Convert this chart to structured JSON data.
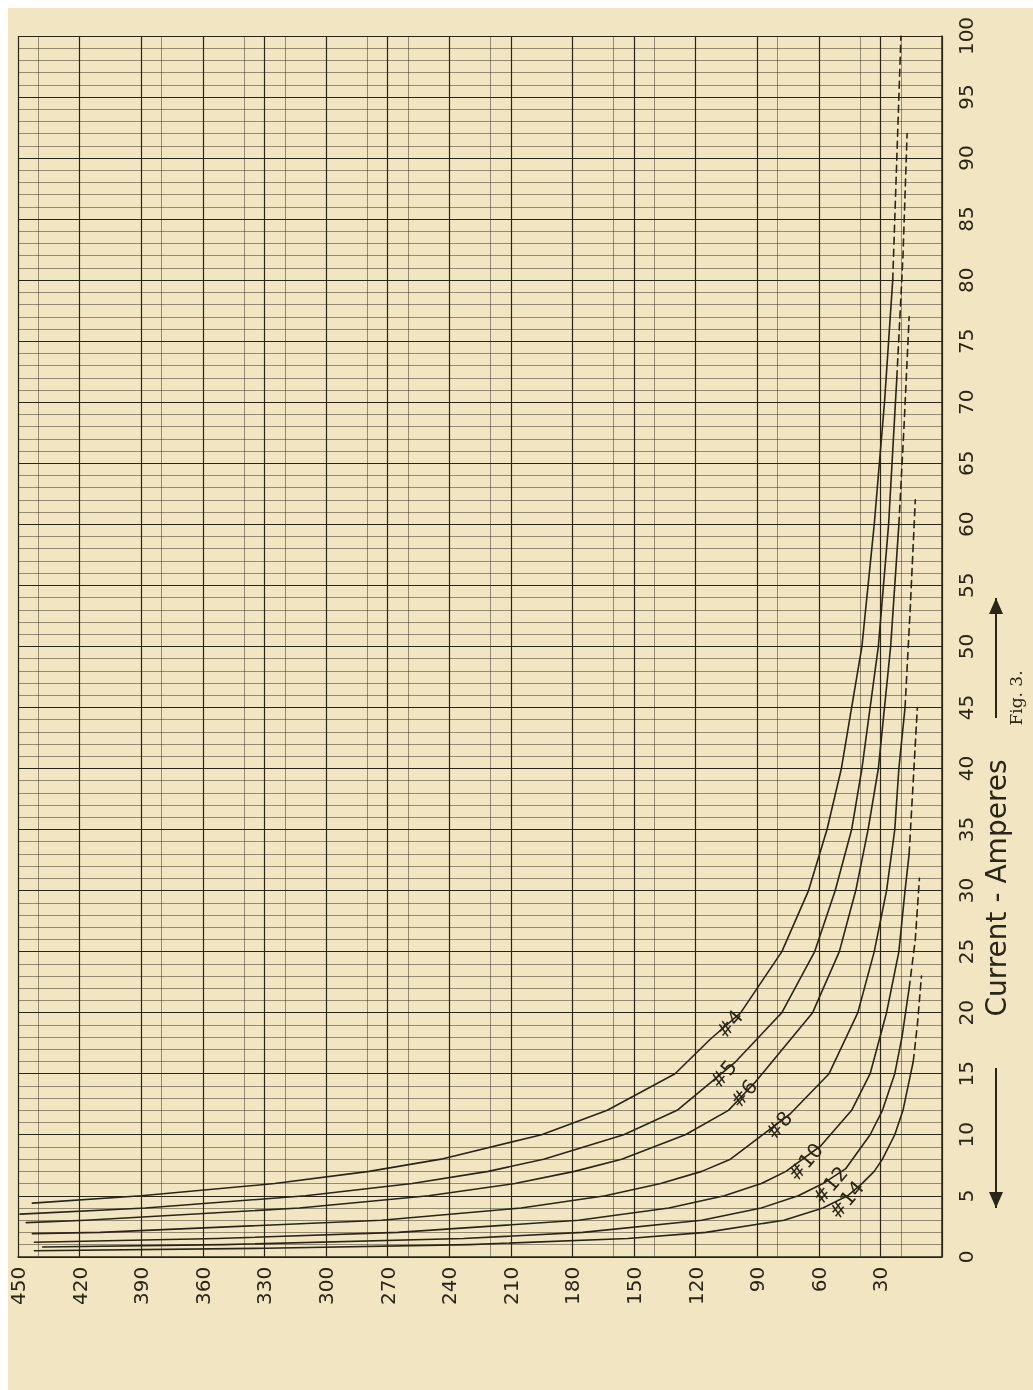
{
  "chart_data": {
    "type": "line",
    "ylabel": "Current - Amperes",
    "annotations": [
      "Fig. 3."
    ],
    "xlim": [
      450,
      0
    ],
    "xticks": [
      {
        "value": 0,
        "label": null
      },
      30,
      60,
      90,
      120,
      150,
      180,
      210,
      240,
      270,
      300,
      330,
      360,
      390,
      420,
      450
    ],
    "ylim": [
      0,
      100
    ],
    "yticks": [
      0,
      5,
      10,
      15,
      20,
      25,
      30,
      35,
      40,
      45,
      50,
      55,
      60,
      65,
      70,
      75,
      80,
      85,
      90,
      95,
      100
    ],
    "grid": true,
    "series": [
      {
        "name": "#4",
        "color": "#2b2418",
        "x": [
          443,
          390,
          325,
          279,
          244,
          195,
          163,
          130,
          113,
          98,
          78,
          65,
          56,
          49,
          39,
          33,
          28,
          24
        ],
        "values": [
          4.4,
          5,
          6,
          7,
          8,
          10,
          12,
          15,
          17.8,
          20,
          25,
          30,
          35,
          40,
          50,
          60,
          70,
          80
        ]
      },
      {
        "color": "#2b2418",
        "line_style": "dashed",
        "x": [
          24,
          22,
          20
        ],
        "values": [
          80,
          90,
          100
        ]
      },
      {
        "name": "#5",
        "color": "#2b2418",
        "x": [
          449,
          388,
          310,
          258,
          221,
          194,
          155,
          129,
          101,
          78,
          62,
          52,
          44,
          39,
          31,
          26,
          22
        ],
        "values": [
          3.5,
          4,
          5,
          6,
          7,
          8,
          10,
          12,
          15.9,
          20,
          25,
          30,
          35,
          40,
          50,
          60,
          72
        ]
      },
      {
        "color": "#2b2418",
        "line_style": "dashed",
        "x": [
          22,
          19,
          17
        ],
        "values": [
          72,
          82,
          92
        ]
      },
      {
        "name": "#6",
        "color": "#2b2418",
        "x": [
          446,
          417,
          313,
          250,
          208,
          179,
          156,
          125,
          104,
          91,
          63,
          50,
          42,
          36,
          31,
          25,
          21
        ],
        "values": [
          2.8,
          3,
          4,
          5,
          6,
          7,
          8,
          10,
          12,
          14.3,
          20,
          25,
          30,
          35,
          40,
          50,
          60
        ]
      },
      {
        "color": "#2b2418",
        "line_style": "dashed",
        "x": [
          21,
          18.5,
          16
        ],
        "values": [
          60,
          68,
          77
        ]
      },
      {
        "name": "#8",
        "color": "#2b2418",
        "x": [
          443,
          410,
          273,
          205,
          164,
          137,
          117,
          103,
          74,
          55,
          41,
          33,
          27,
          23,
          21,
          18
        ],
        "values": [
          1.9,
          2,
          3,
          4,
          5,
          6,
          7,
          8,
          11.7,
          15,
          20,
          25,
          30,
          35,
          40,
          45
        ]
      },
      {
        "color": "#2b2418",
        "line_style": "dashed",
        "x": [
          18,
          15.5,
          13
        ],
        "values": [
          45,
          53,
          62
        ]
      },
      {
        "name": "#10",
        "color": "#2b2418",
        "x": [
          442,
          353,
          265,
          177,
          133,
          106,
          88,
          76,
          59,
          44,
          35,
          27,
          21,
          18,
          16
        ],
        "values": [
          1.2,
          1.5,
          2,
          3,
          4,
          5,
          6,
          7,
          9.1,
          12,
          15,
          20,
          25,
          30,
          33
        ]
      },
      {
        "color": "#2b2418",
        "line_style": "dashed",
        "x": [
          16,
          14,
          12
        ],
        "values": [
          33,
          39,
          45
        ]
      },
      {
        "name": "#12",
        "color": "#2b2418",
        "x": [
          438,
          350,
          233,
          175,
          117,
          88,
          70,
          58,
          47,
          35,
          29,
          23,
          19.5,
          16
        ],
        "values": [
          0.8,
          1,
          1.5,
          2,
          3,
          4,
          5,
          6,
          7.2,
          10,
          12,
          15,
          18,
          22
        ]
      },
      {
        "color": "#2b2418",
        "line_style": "dashed",
        "x": [
          16,
          13,
          11
        ],
        "values": [
          22,
          26,
          31
        ]
      },
      {
        "name": "#14",
        "color": "#2b2418",
        "x": [
          442,
          329,
          230,
          153,
          115,
          77,
          58,
          46,
          39,
          33,
          29,
          23,
          19,
          16.5,
          14
        ],
        "values": [
          0.5,
          0.7,
          1,
          1.5,
          2,
          3,
          4,
          5,
          6,
          7,
          8,
          10,
          12,
          14,
          16
        ]
      },
      {
        "color": "#2b2418",
        "line_style": "dashed",
        "x": [
          14,
          12,
          10
        ],
        "values": [
          16,
          19,
          23
        ]
      }
    ]
  }
}
